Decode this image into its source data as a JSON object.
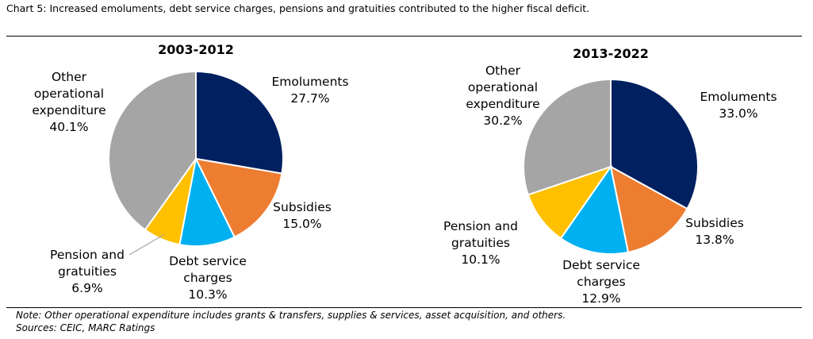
{
  "title": "Chart 5: Increased emoluments, debt service charges, pensions and gratuities contributed to the higher fiscal deficit.",
  "note": "Note: Other operational expenditure includes grants & transfers, supplies & services, asset acquisition, and others.",
  "sources": "Sources: CEIC, MARC Ratings",
  "colors": {
    "Emoluments": "#002060",
    "Subsidies": "#ED7D31",
    "Debt service charges": "#00B0F0",
    "Pension and gratuities": "#FFC000",
    "Other operational expenditure": "#A5A5A5"
  },
  "chart_data": [
    {
      "type": "pie",
      "title": "2003-2012",
      "slices": [
        {
          "name": "Emoluments",
          "value": 27.7,
          "label_lines": [
            "Emoluments",
            "27.7%"
          ]
        },
        {
          "name": "Subsidies",
          "value": 15.0,
          "label_lines": [
            "Subsidies",
            "15.0%"
          ]
        },
        {
          "name": "Debt service charges",
          "value": 10.3,
          "label_lines": [
            "Debt service",
            "charges",
            "10.3%"
          ]
        },
        {
          "name": "Pension and gratuities",
          "value": 6.9,
          "label_lines": [
            "Pension and",
            "gratuities",
            "6.9%"
          ]
        },
        {
          "name": "Other operational expenditure",
          "value": 40.1,
          "label_lines": [
            "Other",
            "operational",
            "expenditure",
            "40.1%"
          ]
        }
      ]
    },
    {
      "type": "pie",
      "title": "2013-2022",
      "slices": [
        {
          "name": "Emoluments",
          "value": 33.0,
          "label_lines": [
            "Emoluments",
            "33.0%"
          ]
        },
        {
          "name": "Subsidies",
          "value": 13.8,
          "label_lines": [
            "Subsidies",
            "13.8%"
          ]
        },
        {
          "name": "Debt service charges",
          "value": 12.9,
          "label_lines": [
            "Debt service",
            "charges",
            "12.9%"
          ]
        },
        {
          "name": "Pension and gratuities",
          "value": 10.1,
          "label_lines": [
            "Pension and",
            "gratuities",
            "10.1%"
          ]
        },
        {
          "name": "Other operational expenditure",
          "value": 30.2,
          "label_lines": [
            "Other",
            "operational",
            "expenditure",
            "30.2%"
          ]
        }
      ]
    }
  ]
}
